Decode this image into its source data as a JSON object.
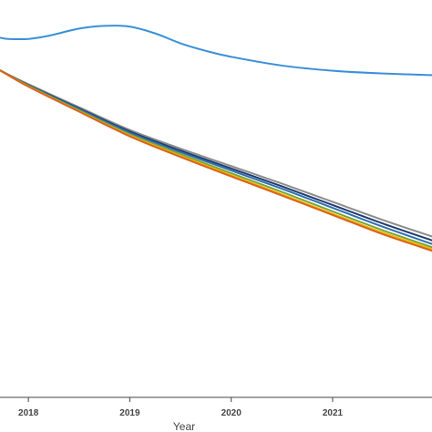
{
  "chart_data": {
    "type": "line",
    "title": "",
    "xlabel": "Year",
    "ylabel": "",
    "x_ticks": [
      "2018",
      "2019",
      "2020",
      "2021"
    ],
    "x_tick_values": [
      2018,
      2019,
      2020,
      2021
    ],
    "xlim": [
      2017.72,
      2021.98
    ],
    "ylim": [
      0,
      1
    ],
    "grid": false,
    "legend": "none",
    "series": [
      {
        "color": "#3a8fd9",
        "x": [
          2017.72,
          2017.8,
          2018.0,
          2018.2,
          2018.5,
          2018.75,
          2019.0,
          2019.25,
          2019.5,
          2019.75,
          2020.0,
          2020.5,
          2021.0,
          2021.5,
          2021.98
        ],
        "y": [
          0.905,
          0.902,
          0.902,
          0.91,
          0.928,
          0.935,
          0.933,
          0.916,
          0.891,
          0.872,
          0.857,
          0.835,
          0.822,
          0.815,
          0.811
        ]
      },
      {
        "color": "#8c8c8c",
        "x": [
          2017.72,
          2018.0,
          2018.5,
          2019.0,
          2019.5,
          2020.0,
          2020.5,
          2021.0,
          2021.5,
          2021.98
        ],
        "y": [
          0.823,
          0.788,
          0.73,
          0.673,
          0.626,
          0.582,
          0.538,
          0.492,
          0.446,
          0.405
        ]
      },
      {
        "color": "#1f3b70",
        "x": [
          2017.72,
          2018.0,
          2018.5,
          2019.0,
          2019.5,
          2020.0,
          2020.5,
          2021.0,
          2021.5,
          2021.98
        ],
        "y": [
          0.823,
          0.786,
          0.727,
          0.669,
          0.621,
          0.576,
          0.531,
          0.484,
          0.437,
          0.395
        ]
      },
      {
        "color": "#2e6fb3",
        "x": [
          2017.72,
          2018.0,
          2018.5,
          2019.0,
          2019.5,
          2020.0,
          2020.5,
          2021.0,
          2021.5,
          2021.98
        ],
        "y": [
          0.823,
          0.785,
          0.725,
          0.666,
          0.617,
          0.571,
          0.525,
          0.477,
          0.429,
          0.386
        ]
      },
      {
        "color": "#7aa534",
        "x": [
          2017.72,
          2018.0,
          2018.5,
          2019.0,
          2019.5,
          2020.0,
          2020.5,
          2021.0,
          2021.5,
          2021.98
        ],
        "y": [
          0.823,
          0.784,
          0.722,
          0.662,
          0.612,
          0.564,
          0.517,
          0.468,
          0.42,
          0.378
        ]
      },
      {
        "color": "#f0b400",
        "x": [
          2017.72,
          2018.0,
          2018.5,
          2019.0,
          2019.5,
          2020.0,
          2020.5,
          2021.0,
          2021.5,
          2021.98
        ],
        "y": [
          0.823,
          0.783,
          0.72,
          0.659,
          0.608,
          0.559,
          0.511,
          0.462,
          0.414,
          0.373
        ]
      },
      {
        "color": "#d9621c",
        "x": [
          2017.72,
          2018.0,
          2018.5,
          2019.0,
          2019.5,
          2020.0,
          2020.5,
          2021.0,
          2021.5,
          2021.98
        ],
        "y": [
          0.823,
          0.782,
          0.719,
          0.657,
          0.605,
          0.556,
          0.508,
          0.459,
          0.41,
          0.369
        ]
      }
    ]
  }
}
